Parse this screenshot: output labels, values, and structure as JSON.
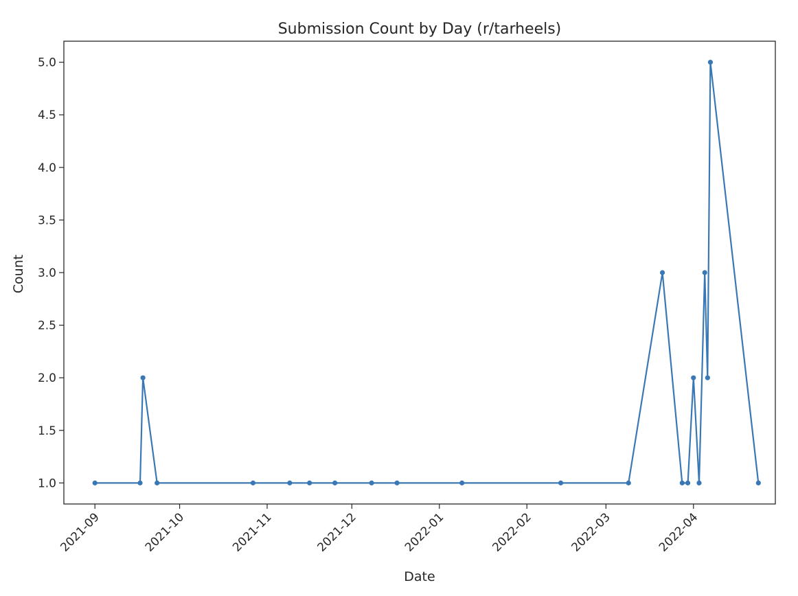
{
  "chart_data": {
    "type": "line",
    "title": "Submission Count by Day (r/tarheels)",
    "xlabel": "Date",
    "ylabel": "Count",
    "x_ticks": [
      "2021-09-01",
      "2021-10-01",
      "2021-11-01",
      "2021-12-01",
      "2022-01-01",
      "2022-02-01",
      "2022-03-01",
      "2022-04-01"
    ],
    "x_tick_labels": [
      "2021-09",
      "2021-10",
      "2021-11",
      "2021-12",
      "2022-01",
      "2022-02",
      "2022-03",
      "2022-04"
    ],
    "y_ticks": [
      1.0,
      1.5,
      2.0,
      2.5,
      3.0,
      3.5,
      4.0,
      4.5,
      5.0
    ],
    "y_tick_labels": [
      "1.0",
      "1.5",
      "2.0",
      "2.5",
      "3.0",
      "3.5",
      "4.0",
      "4.5",
      "5.0"
    ],
    "xlim": [
      "2021-08-21",
      "2022-04-30"
    ],
    "ylim": [
      0.8,
      5.2
    ],
    "grid": false,
    "series": [
      {
        "color": "#3a78b5",
        "x": [
          "2021-09-01",
          "2021-09-17",
          "2021-09-18",
          "2021-09-23",
          "2021-10-27",
          "2021-11-09",
          "2021-11-16",
          "2021-11-25",
          "2021-12-08",
          "2021-12-17",
          "2022-01-09",
          "2022-02-13",
          "2022-03-09",
          "2022-03-21",
          "2022-03-28",
          "2022-03-30",
          "2022-04-01",
          "2022-04-03",
          "2022-04-05",
          "2022-04-06",
          "2022-04-07",
          "2022-04-24"
        ],
        "values": [
          1,
          1,
          2,
          1,
          1,
          1,
          1,
          1,
          1,
          1,
          1,
          1,
          1,
          3,
          1,
          1,
          2,
          1,
          3,
          2,
          5,
          1
        ]
      }
    ]
  }
}
